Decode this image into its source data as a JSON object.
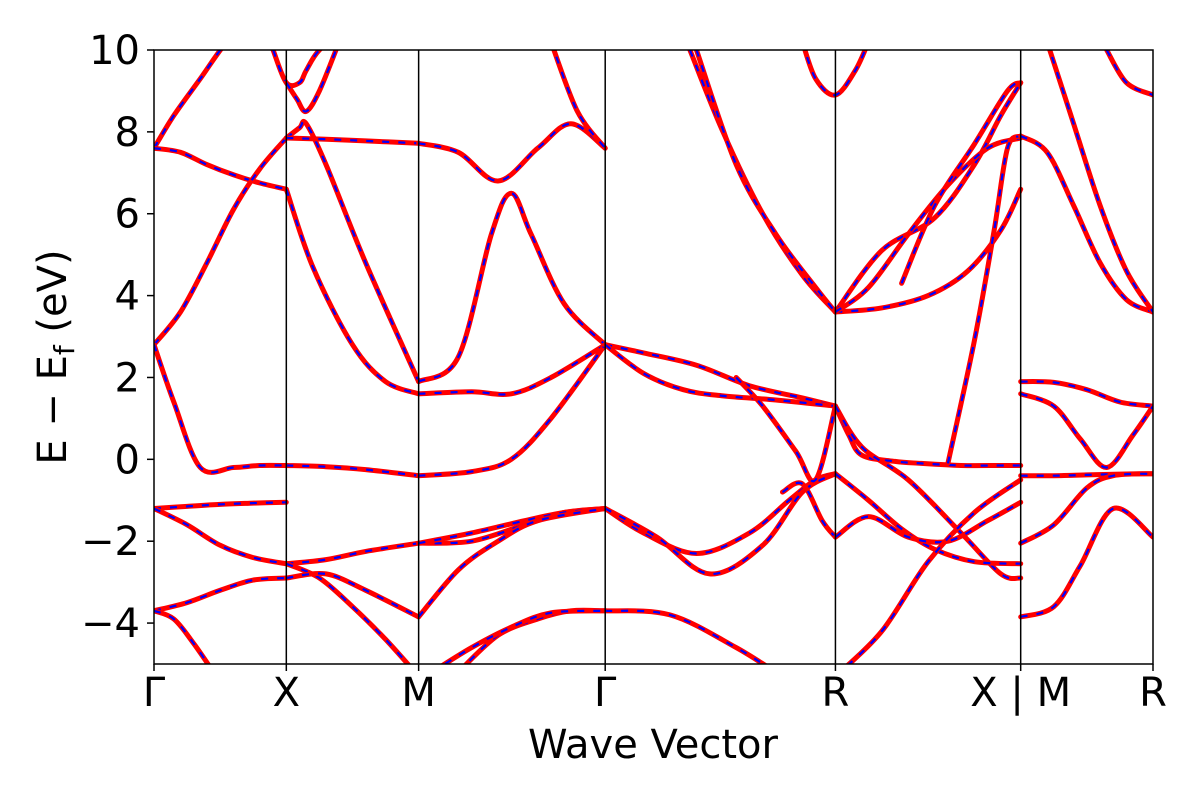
{
  "chart_data": {
    "type": "line",
    "title": "",
    "xlabel": "Wave Vector",
    "ylabel": {
      "prefix": "E − E",
      "subscript": "f",
      "suffix": " (eV)"
    },
    "ylim": [
      -5,
      10
    ],
    "yticks": [
      -4,
      -2,
      0,
      2,
      4,
      6,
      8,
      10
    ],
    "ytick_labels": [
      "−4",
      "−2",
      "0",
      "2",
      "4",
      "6",
      "8",
      "10"
    ],
    "xlim": [
      0,
      7.55
    ],
    "high_symmetry_points": [
      {
        "label": "Γ",
        "x": 0.0
      },
      {
        "label": "X",
        "x": 1.0
      },
      {
        "label": "M",
        "x": 2.0
      },
      {
        "label": "Γ",
        "x": 3.41
      },
      {
        "label": "R",
        "x": 5.15
      },
      {
        "label": "X | M",
        "x": 6.55
      },
      {
        "label": "R",
        "x": 7.55
      }
    ],
    "grid": false,
    "legend": "none",
    "series_colors": {
      "reference": "#ff0000",
      "comparison": "#0000ff"
    },
    "bands": [
      {
        "x": [
          0,
          0.15,
          0.35,
          0.55,
          0.75,
          1.0
        ],
        "y": [
          7.6,
          8.4,
          9.3,
          10.2,
          10.8,
          11.2
        ]
      },
      {
        "x": [
          0,
          0.2,
          0.4,
          0.6,
          0.8,
          1.0
        ],
        "y": [
          7.6,
          7.5,
          7.2,
          6.95,
          6.75,
          6.6
        ]
      },
      {
        "x": [
          0,
          0.2,
          0.4,
          0.6,
          0.8,
          1.0
        ],
        "y": [
          2.8,
          3.6,
          4.8,
          6.1,
          7.1,
          7.85
        ]
      },
      {
        "x": [
          0,
          0.15,
          0.35,
          0.6,
          0.8,
          1.0
        ],
        "y": [
          2.8,
          1.4,
          -0.2,
          -0.2,
          -0.15,
          -0.15
        ]
      },
      {
        "x": [
          0,
          0.25,
          0.5,
          0.75,
          1.0
        ],
        "y": [
          -1.2,
          -1.15,
          -1.1,
          -1.07,
          -1.05
        ]
      },
      {
        "x": [
          0,
          0.25,
          0.5,
          0.75,
          1.0
        ],
        "y": [
          -1.2,
          -1.6,
          -2.1,
          -2.4,
          -2.55
        ]
      },
      {
        "x": [
          0,
          0.25,
          0.5,
          0.75,
          1.0
        ],
        "y": [
          -3.7,
          -3.5,
          -3.2,
          -2.95,
          -2.9
        ]
      },
      {
        "x": [
          0,
          0.15,
          0.3,
          0.45
        ],
        "y": [
          -3.7,
          -3.9,
          -4.5,
          -5.2
        ]
      },
      {
        "x": [
          0.9,
          1.0,
          1.1,
          1.15,
          1.25,
          1.45
        ],
        "y": [
          10.0,
          9.2,
          9.2,
          9.5,
          10.0,
          10.5
        ]
      },
      {
        "x": [
          1.0,
          1.08,
          1.15,
          1.25,
          1.4
        ],
        "y": [
          9.2,
          8.8,
          8.5,
          9.0,
          10.2
        ]
      },
      {
        "x": [
          1.0,
          1.1,
          1.15,
          1.3,
          1.6,
          2.0
        ],
        "y": [
          7.85,
          8.1,
          8.2,
          7.2,
          4.8,
          1.9
        ]
      },
      {
        "x": [
          1.0,
          1.3,
          1.6,
          2.0
        ],
        "y": [
          7.85,
          7.82,
          7.78,
          7.72
        ]
      },
      {
        "x": [
          1.0,
          1.2,
          1.5,
          1.75,
          2.0
        ],
        "y": [
          6.6,
          4.7,
          2.8,
          1.9,
          1.6
        ]
      },
      {
        "x": [
          1.0,
          1.3,
          1.6,
          2.0
        ],
        "y": [
          -0.15,
          -0.18,
          -0.25,
          -0.4
        ]
      },
      {
        "x": [
          1.0,
          1.3,
          1.6,
          2.0
        ],
        "y": [
          -2.55,
          -2.45,
          -2.25,
          -2.05
        ]
      },
      {
        "x": [
          1.0,
          1.25,
          1.5,
          1.75,
          2.0
        ],
        "y": [
          -2.55,
          -2.9,
          -3.6,
          -4.4,
          -5.3
        ]
      },
      {
        "x": [
          1.0,
          1.3,
          1.6,
          2.0
        ],
        "y": [
          -2.9,
          -2.8,
          -3.2,
          -3.85
        ]
      },
      {
        "x": [
          2.0,
          2.3,
          2.6,
          2.9,
          3.15,
          3.41
        ],
        "y": [
          7.72,
          7.5,
          6.8,
          7.6,
          8.2,
          7.6
        ]
      },
      {
        "x": [
          2.0,
          2.3,
          2.55,
          2.7,
          2.85,
          3.1,
          3.41
        ],
        "y": [
          1.9,
          2.5,
          5.5,
          6.5,
          5.5,
          3.8,
          2.8
        ]
      },
      {
        "x": [
          2.0,
          2.4,
          2.7,
          3.0,
          3.41
        ],
        "y": [
          1.6,
          1.65,
          1.6,
          2.0,
          2.8
        ]
      },
      {
        "x": [
          2.0,
          2.4,
          2.7,
          3.0,
          3.41
        ],
        "y": [
          -0.4,
          -0.3,
          0.0,
          1.0,
          2.8
        ]
      },
      {
        "x": [
          2.0,
          2.4,
          2.8,
          3.1,
          3.41
        ],
        "y": [
          -2.05,
          -2.0,
          -1.6,
          -1.3,
          -1.2
        ]
      },
      {
        "x": [
          2.0,
          2.4,
          2.8,
          3.1,
          3.41
        ],
        "y": [
          -2.05,
          -1.8,
          -1.5,
          -1.3,
          -1.2
        ]
      },
      {
        "x": [
          2.0,
          2.3,
          2.6,
          2.9,
          3.41
        ],
        "y": [
          -3.85,
          -2.7,
          -2.0,
          -1.5,
          -1.2
        ]
      },
      {
        "x": [
          2.3,
          2.6,
          2.9,
          3.15,
          3.41
        ],
        "y": [
          -5.2,
          -4.3,
          -3.9,
          -3.7,
          -3.7
        ]
      },
      {
        "x": [
          2.1,
          2.4,
          2.7,
          3.0,
          3.41
        ],
        "y": [
          -5.2,
          -4.6,
          -4.1,
          -3.75,
          -3.7
        ]
      },
      {
        "x": [
          3.0,
          3.2,
          3.41
        ],
        "y": [
          10.2,
          8.5,
          7.6
        ]
      },
      {
        "x": [
          3.41,
          3.7,
          4.1,
          4.5,
          4.9,
          5.15
        ],
        "y": [
          2.8,
          2.6,
          2.3,
          1.8,
          1.5,
          1.3
        ]
      },
      {
        "x": [
          3.41,
          3.7,
          4.0,
          4.3,
          4.7,
          5.15
        ],
        "y": [
          2.8,
          2.1,
          1.7,
          1.55,
          1.45,
          1.3
        ]
      },
      {
        "x": [
          3.41,
          3.7,
          4.1,
          4.5,
          4.8,
          5.0,
          5.15
        ],
        "y": [
          -1.2,
          -1.8,
          -2.3,
          -1.8,
          -1.0,
          -0.5,
          -0.35
        ]
      },
      {
        "x": [
          3.41,
          3.8,
          4.2,
          4.6,
          4.9,
          5.15
        ],
        "y": [
          -1.2,
          -1.9,
          -2.8,
          -2.1,
          -0.8,
          -0.35
        ]
      },
      {
        "x": [
          3.41,
          3.9,
          4.4,
          4.8,
          5.15
        ],
        "y": [
          -3.7,
          -3.8,
          -4.6,
          -5.4,
          -6.0
        ]
      },
      {
        "x": [
          4.05,
          4.3,
          4.6,
          4.9,
          5.15
        ],
        "y": [
          10.0,
          8.0,
          6.0,
          4.5,
          3.6
        ]
      },
      {
        "x": [
          4.1,
          4.4,
          4.7,
          5.0,
          5.15
        ],
        "y": [
          10.0,
          7.2,
          5.5,
          4.2,
          3.6
        ]
      },
      {
        "x": [
          4.4,
          4.6,
          4.85,
          5.0,
          5.15
        ],
        "y": [
          2.0,
          1.3,
          0.2,
          -0.5,
          1.3
        ]
      },
      {
        "x": [
          4.75,
          4.9,
          5.05,
          5.15
        ],
        "y": [
          -0.8,
          -0.6,
          -1.5,
          -1.9
        ]
      },
      {
        "x": [
          4.9,
          5.0,
          5.15,
          5.3,
          5.4
        ],
        "y": [
          10.2,
          9.3,
          8.9,
          9.5,
          10.2
        ]
      },
      {
        "x": [
          5.15,
          5.5,
          5.9,
          6.2,
          6.4,
          6.55
        ],
        "y": [
          3.6,
          5.1,
          5.9,
          7.2,
          8.4,
          9.2
        ]
      },
      {
        "x": [
          5.15,
          5.5,
          5.85,
          6.15,
          6.4,
          6.55
        ],
        "y": [
          3.6,
          3.7,
          4.0,
          4.6,
          5.6,
          6.6
        ]
      },
      {
        "x": [
          5.15,
          5.4,
          5.7,
          6.0,
          6.3,
          6.55
        ],
        "y": [
          3.6,
          4.2,
          5.5,
          6.7,
          7.6,
          7.85
        ]
      },
      {
        "x": [
          5.15,
          5.25,
          5.35,
          5.6,
          5.8,
          6.1,
          6.4,
          6.55
        ],
        "y": [
          1.3,
          0.6,
          0.1,
          -0.05,
          -0.1,
          -0.15,
          -0.15,
          -0.15
        ]
      },
      {
        "x": [
          5.15,
          5.35,
          5.7,
          6.1,
          6.4,
          6.55
        ],
        "y": [
          1.3,
          0.3,
          -0.5,
          -1.8,
          -2.8,
          -2.9
        ]
      },
      {
        "x": [
          5.15,
          5.4,
          5.65,
          5.9,
          6.2,
          6.55
        ],
        "y": [
          -0.35,
          -1.0,
          -1.7,
          -2.2,
          -2.5,
          -2.55
        ]
      },
      {
        "x": [
          5.15,
          5.4,
          5.7,
          6.0,
          6.3,
          6.55
        ],
        "y": [
          -1.9,
          -1.4,
          -1.9,
          -2.0,
          -1.5,
          -1.05
        ]
      },
      {
        "x": [
          5.15,
          5.5,
          5.85,
          6.2,
          6.55
        ],
        "y": [
          -5.3,
          -4.2,
          -2.5,
          -1.3,
          -0.5
        ]
      },
      {
        "x": [
          6.0,
          6.2,
          6.35,
          6.45,
          6.55
        ],
        "y": [
          -0.1,
          2.9,
          5.6,
          7.6,
          7.9
        ]
      },
      {
        "x": [
          5.65,
          5.9,
          6.2,
          6.45,
          6.55
        ],
        "y": [
          4.3,
          6.2,
          7.7,
          9.0,
          9.2
        ]
      },
      {
        "x": [
          6.55,
          6.8,
          7.05,
          7.3,
          7.55
        ],
        "y": [
          1.9,
          1.88,
          1.7,
          1.4,
          1.3
        ]
      },
      {
        "x": [
          6.55,
          6.8,
          7.0,
          7.2,
          7.4,
          7.55
        ],
        "y": [
          1.6,
          1.3,
          0.5,
          -0.2,
          0.6,
          1.3
        ]
      },
      {
        "x": [
          6.55,
          6.8,
          7.05,
          7.3,
          7.55
        ],
        "y": [
          -0.4,
          -0.4,
          -0.38,
          -0.36,
          -0.35
        ]
      },
      {
        "x": [
          6.55,
          6.8,
          7.05,
          7.25,
          7.55
        ],
        "y": [
          -2.05,
          -1.6,
          -0.7,
          -0.4,
          -0.35
        ]
      },
      {
        "x": [
          6.55,
          6.8,
          7.0,
          7.25,
          7.55
        ],
        "y": [
          -3.85,
          -3.6,
          -2.6,
          -1.2,
          -1.9
        ]
      },
      {
        "x": [
          6.55,
          6.75,
          6.95,
          7.15,
          7.35,
          7.55
        ],
        "y": [
          7.9,
          7.5,
          6.2,
          4.8,
          3.9,
          3.6
        ]
      },
      {
        "x": [
          6.75,
          6.95,
          7.15,
          7.35,
          7.55
        ],
        "y": [
          10.2,
          8.2,
          6.2,
          4.6,
          3.6
        ]
      },
      {
        "x": [
          7.2,
          7.35,
          7.55
        ],
        "y": [
          10.0,
          9.2,
          8.9
        ]
      }
    ]
  }
}
